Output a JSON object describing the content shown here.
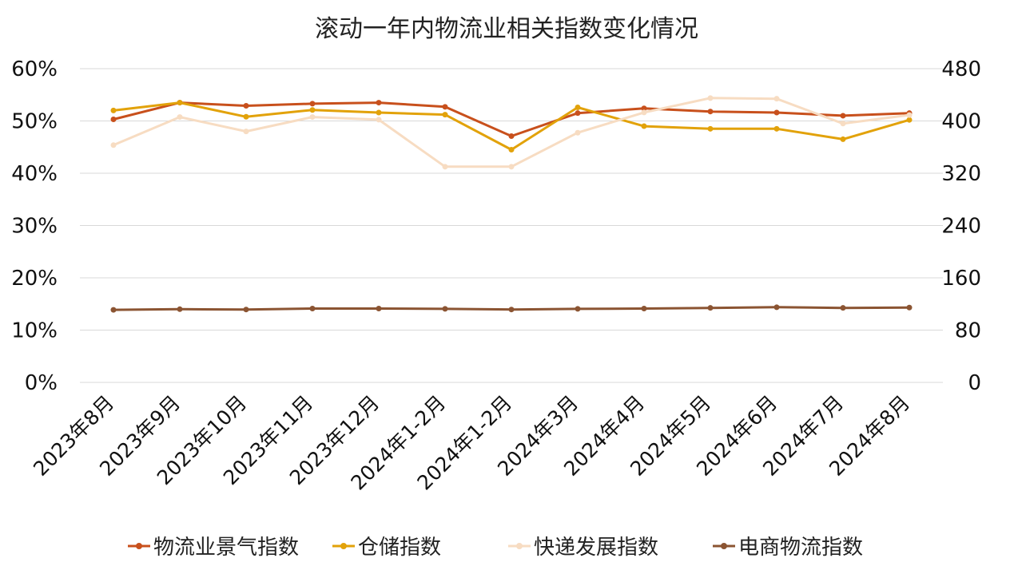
{
  "chart_data": {
    "type": "line",
    "title": "滚动一年内物流业相关指数变化情况",
    "categories": [
      "2023年8月",
      "2023年9月",
      "2023年10月",
      "2023年11月",
      "2023年12月",
      "2024年1-2月",
      "2024年1-2月",
      "2024年3月",
      "2024年4月",
      "2024年5月",
      "2024年6月",
      "2024年7月",
      "2024年8月"
    ],
    "y_left": {
      "min": 0,
      "max": 60,
      "ticks": [
        "0%",
        "10%",
        "20%",
        "30%",
        "40%",
        "50%",
        "60%"
      ]
    },
    "y_right": {
      "min": 0,
      "max": 480,
      "ticks": [
        "0",
        "80",
        "160",
        "240",
        "320",
        "400",
        "480"
      ]
    },
    "grid": true,
    "legend_position": "bottom",
    "series": [
      {
        "name": "物流业景气指数",
        "color": "#c8501c",
        "axis": "left",
        "values": [
          50.3,
          53.5,
          52.9,
          53.3,
          53.5,
          52.7,
          47.1,
          51.5,
          52.4,
          51.8,
          51.6,
          51.0,
          51.5
        ]
      },
      {
        "name": "仓储指数",
        "color": "#e2a20a",
        "axis": "left",
        "values": [
          52.0,
          53.5,
          50.8,
          52.1,
          51.6,
          51.2,
          44.5,
          52.6,
          49.0,
          48.5,
          48.5,
          46.5,
          50.2
        ]
      },
      {
        "name": "快递发展指数",
        "color": "#f7dcc2",
        "axis": "right",
        "values": [
          363,
          406,
          384,
          406,
          402,
          330,
          330,
          382,
          413,
          435,
          434,
          396,
          409
        ]
      },
      {
        "name": "电商物流指数",
        "color": "#8b5432",
        "axis": "right",
        "values": [
          111,
          112,
          111.5,
          113,
          113,
          112.5,
          111.5,
          112.5,
          113,
          114,
          115,
          114,
          114.5
        ]
      }
    ]
  }
}
